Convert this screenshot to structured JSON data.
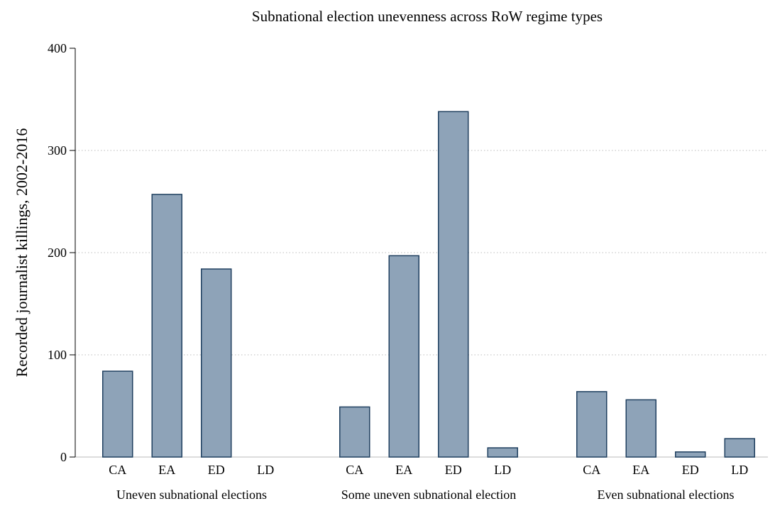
{
  "chart_data": {
    "type": "bar",
    "title": "Subnational election unevenness across RoW regime types",
    "ylabel": "Recorded journalist killings, 2002-2016",
    "xlabel": "",
    "ylim": [
      0,
      400
    ],
    "yticks": [
      0,
      100,
      200,
      300,
      400
    ],
    "grid": true,
    "legend": "none",
    "colors": {
      "bar_fill": "#8ea3b8",
      "bar_stroke": "#1f3f5f",
      "grid": "#bbbbbb"
    },
    "groups": [
      {
        "label": "Uneven subnational elections",
        "categories": [
          "CA",
          "EA",
          "ED",
          "LD"
        ],
        "values": [
          84,
          257,
          184,
          0
        ]
      },
      {
        "label": "Some uneven subnational election",
        "categories": [
          "CA",
          "EA",
          "ED",
          "LD"
        ],
        "values": [
          49,
          197,
          338,
          9
        ]
      },
      {
        "label": "Even subnational elections",
        "categories": [
          "CA",
          "EA",
          "ED",
          "LD"
        ],
        "values": [
          64,
          56,
          5,
          18
        ]
      }
    ]
  }
}
